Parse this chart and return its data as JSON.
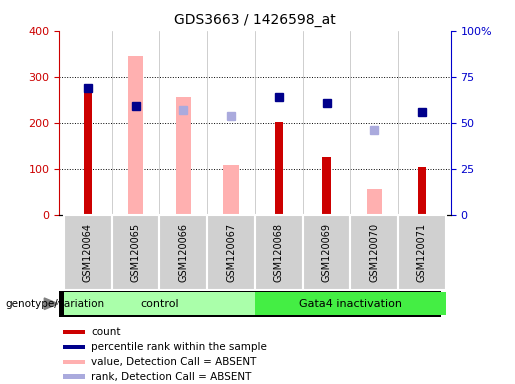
{
  "title": "GDS3663 / 1426598_at",
  "samples": [
    "GSM120064",
    "GSM120065",
    "GSM120066",
    "GSM120067",
    "GSM120068",
    "GSM120069",
    "GSM120070",
    "GSM120071"
  ],
  "count": [
    270,
    0,
    0,
    0,
    202,
    126,
    0,
    105
  ],
  "pink_bar": [
    0,
    345,
    256,
    109,
    0,
    0,
    56,
    0
  ],
  "dark_blue_sq": [
    69,
    59,
    0,
    0,
    64,
    61,
    0,
    56
  ],
  "light_blue_sq": [
    0,
    0,
    57,
    54,
    0,
    0,
    46,
    0
  ],
  "dark_blue_sq_present": [
    true,
    true,
    false,
    false,
    true,
    true,
    false,
    true
  ],
  "light_blue_sq_present": [
    false,
    false,
    true,
    true,
    false,
    false,
    true,
    false
  ],
  "left_ylim": [
    0,
    400
  ],
  "left_yticks": [
    0,
    100,
    200,
    300,
    400
  ],
  "right_yticklabels": [
    "0",
    "25",
    "50",
    "75",
    "100%"
  ],
  "left_color": "#cc0000",
  "right_color": "#0000cc",
  "control_label": "control",
  "gata4_label": "Gata4 inactivation",
  "genotype_label": "genotype/variation",
  "legend_labels": [
    "count",
    "percentile rank within the sample",
    "value, Detection Call = ABSENT",
    "rank, Detection Call = ABSENT"
  ],
  "legend_colors": [
    "#cc0000",
    "#00008b",
    "#ffb0b0",
    "#aaaadd"
  ],
  "bar_color_red": "#cc0000",
  "bar_color_pink": "#ffb0b0",
  "sq_color_dark": "#00008b",
  "sq_color_light": "#aaaadd",
  "control_color": "#aaffaa",
  "gata4_color": "#44ee44",
  "sample_box_color": "#d0d0d0",
  "sample_box_border": "#ffffff"
}
